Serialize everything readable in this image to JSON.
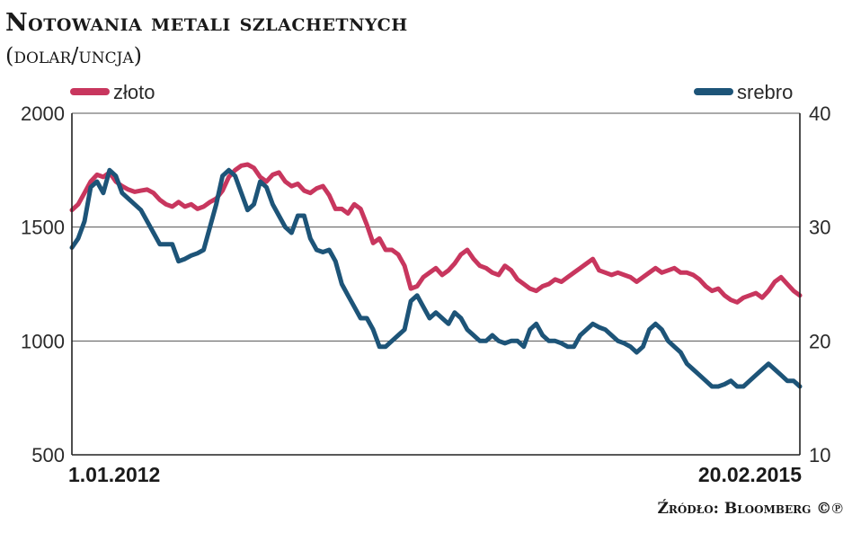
{
  "header": {
    "title": "Notowania metali szlachetnych",
    "subtitle": "(dolar/uncja)"
  },
  "footer": {
    "source": "Źródło: Bloomberg ©℗"
  },
  "colors": {
    "gold": "#c8365e",
    "silver": "#1d5478",
    "grid": "#555555"
  },
  "chart_data": {
    "type": "line",
    "title": "Notowania metali szlachetnych",
    "subtitle": "(dolar/uncja)",
    "x_start_label": "1.01.2012",
    "x_end_label": "20.02.2015",
    "ylim_left": [
      500,
      2000
    ],
    "yticks_left": [
      500,
      1000,
      1500,
      2000
    ],
    "ylim_right": [
      10,
      40
    ],
    "yticks_right": [
      10,
      20,
      30,
      40
    ],
    "legend_position": "top",
    "grid": true,
    "series": [
      {
        "name": "złoto",
        "axis": "left",
        "color": "#c8365e",
        "values": [
          1575,
          1600,
          1650,
          1700,
          1730,
          1720,
          1740,
          1700,
          1680,
          1665,
          1655,
          1660,
          1665,
          1650,
          1620,
          1600,
          1590,
          1610,
          1590,
          1600,
          1580,
          1590,
          1610,
          1625,
          1660,
          1720,
          1750,
          1770,
          1775,
          1760,
          1720,
          1700,
          1730,
          1740,
          1700,
          1680,
          1690,
          1660,
          1650,
          1670,
          1680,
          1640,
          1580,
          1580,
          1560,
          1600,
          1580,
          1510,
          1430,
          1450,
          1400,
          1400,
          1380,
          1330,
          1230,
          1240,
          1280,
          1300,
          1320,
          1290,
          1310,
          1340,
          1380,
          1400,
          1360,
          1330,
          1320,
          1300,
          1290,
          1330,
          1310,
          1270,
          1250,
          1230,
          1220,
          1240,
          1250,
          1270,
          1260,
          1280,
          1300,
          1320,
          1340,
          1360,
          1310,
          1300,
          1290,
          1300,
          1290,
          1280,
          1260,
          1280,
          1300,
          1320,
          1300,
          1310,
          1320,
          1300,
          1300,
          1290,
          1270,
          1240,
          1220,
          1230,
          1200,
          1180,
          1170,
          1190,
          1200,
          1210,
          1190,
          1220,
          1260,
          1280,
          1250,
          1220,
          1200
        ]
      },
      {
        "name": "srebro",
        "axis": "right",
        "color": "#1d5478",
        "values": [
          28.2,
          29,
          30.5,
          33.5,
          34,
          33,
          35,
          34.5,
          33,
          32.5,
          32,
          31.5,
          30.5,
          29.5,
          28.5,
          28.5,
          28.5,
          27,
          27.2,
          27.5,
          27.7,
          28,
          30,
          32,
          34.5,
          35,
          34.5,
          33,
          31.5,
          32,
          34,
          33.5,
          32,
          31,
          30,
          29.5,
          31,
          31,
          29,
          28,
          27.8,
          28,
          27,
          25,
          24,
          23,
          22,
          22,
          21,
          19.5,
          19.5,
          20,
          20.5,
          21,
          23.5,
          24,
          23,
          22,
          22.5,
          22,
          21.5,
          22.5,
          22,
          21,
          20.5,
          20,
          20,
          20.5,
          20,
          19.8,
          20,
          20,
          19.5,
          21,
          21.5,
          20.5,
          20,
          20,
          19.8,
          19.5,
          19.5,
          20.5,
          21,
          21.5,
          21.2,
          21,
          20.5,
          20,
          19.8,
          19.5,
          19,
          19.5,
          21,
          21.5,
          21,
          20,
          19.5,
          19,
          18,
          17.5,
          17,
          16.5,
          16,
          16,
          16.2,
          16.5,
          16,
          16,
          16.5,
          17,
          17.5,
          18,
          17.5,
          17,
          16.5,
          16.5,
          16
        ]
      }
    ]
  }
}
